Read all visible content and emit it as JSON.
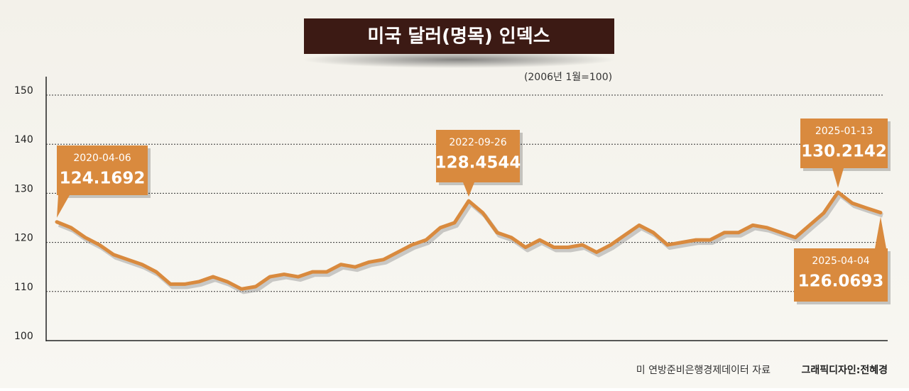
{
  "chart_data": {
    "type": "line",
    "title": "미국 달러(명목) 인덱스",
    "subtitle": "(2006년 1월=100)",
    "source": "미 연방준비은행경제데이터 자료",
    "credit": "그래픽디자인:전혜경",
    "categories": [
      "2020-04-06",
      null,
      null,
      null,
      null,
      null,
      null,
      null,
      null,
      null,
      null,
      null,
      null,
      null,
      null,
      null,
      null,
      null,
      null,
      null,
      null,
      null,
      null,
      null,
      null,
      null,
      null,
      null,
      null,
      "2022-09-26",
      null,
      null,
      null,
      null,
      null,
      null,
      null,
      null,
      null,
      null,
      null,
      null,
      null,
      null,
      null,
      null,
      null,
      null,
      null,
      null,
      null,
      null,
      null,
      null,
      null,
      "2025-01-13",
      null,
      null,
      "2025-04-04"
    ],
    "series": [
      {
        "color": "#d98a3e",
        "values": [
          124.1692,
          123,
          121,
          119.5,
          117.5,
          116.5,
          115.5,
          114,
          111.5,
          111.5,
          112,
          113,
          112,
          110.5,
          111,
          113,
          113.5,
          113,
          114,
          114,
          115.5,
          115,
          116,
          116.5,
          118,
          119.5,
          120.5,
          123,
          124,
          128.4544,
          126,
          122,
          121,
          119,
          120.5,
          119,
          119,
          119.5,
          118,
          119.5,
          121.5,
          123.5,
          122,
          119.5,
          120,
          120.5,
          120.5,
          122,
          122,
          123.5,
          123,
          122,
          121,
          123.5,
          126,
          130.2142,
          128,
          127,
          126.0693
        ]
      }
    ],
    "ylim": [
      100,
      150
    ],
    "yticks": [
      100,
      110,
      120,
      130,
      140,
      150
    ],
    "grid": true
  }
}
